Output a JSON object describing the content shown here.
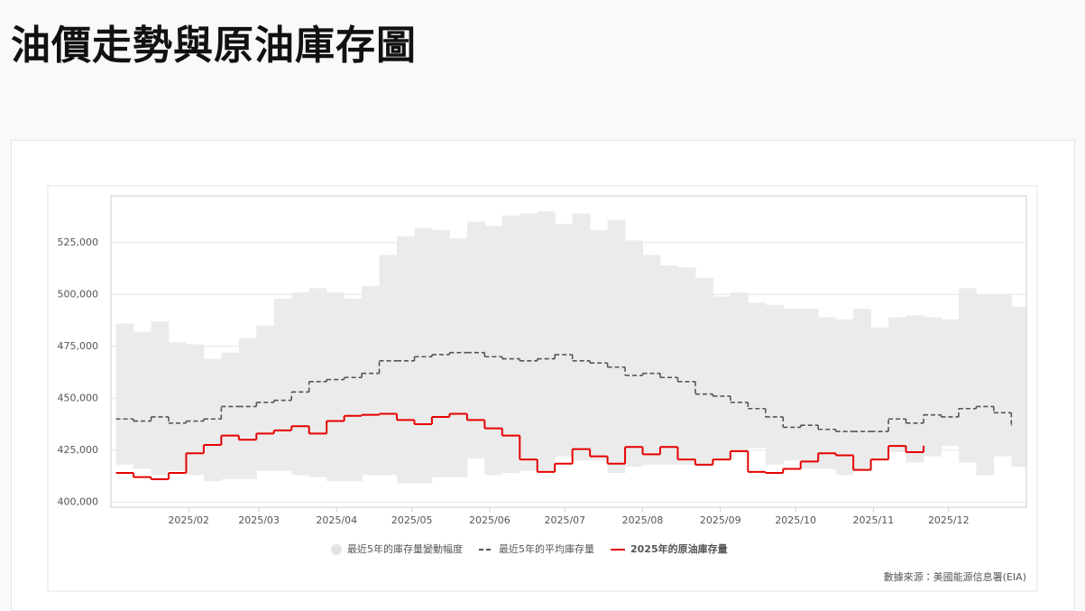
{
  "title": "油價走勢與原油庫存圖",
  "chart_data": {
    "type": "line",
    "step": true,
    "x": [
      3,
      10,
      17,
      24,
      31,
      38,
      45,
      52,
      59,
      66,
      73,
      80,
      87,
      94,
      101,
      108,
      115,
      122,
      129,
      136,
      143,
      150,
      157,
      164,
      171,
      178,
      185,
      192,
      199,
      206,
      213,
      220,
      227,
      234,
      241,
      248,
      255,
      262,
      269,
      276,
      283,
      290,
      297,
      304,
      311,
      318,
      325,
      332,
      339,
      346,
      353,
      360
    ],
    "xlim": [
      1,
      366
    ],
    "xticks": [
      {
        "value": 32,
        "label": "2025/02"
      },
      {
        "value": 60,
        "label": "2025/03"
      },
      {
        "value": 91,
        "label": "2025/04"
      },
      {
        "value": 121,
        "label": "2025/05"
      },
      {
        "value": 152,
        "label": "2025/06"
      },
      {
        "value": 182,
        "label": "2025/07"
      },
      {
        "value": 213,
        "label": "2025/08"
      },
      {
        "value": 244,
        "label": "2025/09"
      },
      {
        "value": 274,
        "label": "2025/10"
      },
      {
        "value": 305,
        "label": "2025/11"
      },
      {
        "value": 335,
        "label": "2025/12"
      }
    ],
    "ylim": [
      397500,
      547500
    ],
    "yticks": [
      {
        "value": 400000,
        "label": "400,000"
      },
      {
        "value": 425000,
        "label": "425,000"
      },
      {
        "value": 450000,
        "label": "450,000"
      },
      {
        "value": 475000,
        "label": "475,000"
      },
      {
        "value": 500000,
        "label": "500,000"
      },
      {
        "value": 525000,
        "label": "525,000"
      }
    ],
    "grid": true,
    "series": [
      {
        "name": "最近5年的庫存量變動幅度",
        "type": "range",
        "color": "#ebebeb",
        "low": [
          418000,
          416000,
          413000,
          415000,
          413000,
          410000,
          411000,
          411000,
          415000,
          415000,
          413000,
          412000,
          410000,
          410000,
          413000,
          413000,
          409000,
          409000,
          412000,
          412000,
          421000,
          413000,
          414000,
          415000,
          415000,
          422000,
          420000,
          420000,
          414000,
          417000,
          418000,
          418000,
          418000,
          417000,
          420000,
          425000,
          426000,
          418000,
          420000,
          416000,
          416000,
          413000,
          415000,
          420000,
          424000,
          419000,
          422000,
          427000,
          419000,
          413000,
          422000,
          417000
        ],
        "high": [
          486000,
          482000,
          487000,
          477000,
          476000,
          469000,
          472000,
          479000,
          485000,
          498000,
          501000,
          503000,
          501000,
          498000,
          504000,
          519000,
          528000,
          532000,
          531000,
          527000,
          535000,
          533000,
          538000,
          539000,
          540000,
          534000,
          539000,
          531000,
          536000,
          526000,
          519000,
          514000,
          513000,
          508000,
          499000,
          501000,
          496000,
          495000,
          493000,
          493000,
          489000,
          488000,
          493000,
          484000,
          489000,
          490000,
          489000,
          488000,
          503000,
          500000,
          500000,
          494000
        ]
      },
      {
        "name": "最近5年的平均庫存量",
        "type": "line",
        "color": "#555555",
        "dash": true,
        "values": [
          440000,
          439000,
          441000,
          438000,
          439000,
          440000,
          446000,
          446000,
          448000,
          449000,
          453000,
          458000,
          459000,
          460000,
          462000,
          468000,
          468000,
          470000,
          471000,
          472000,
          472000,
          470000,
          469000,
          468000,
          469000,
          471000,
          468000,
          467000,
          465000,
          461000,
          462000,
          460000,
          458000,
          452000,
          451000,
          448000,
          445000,
          441000,
          436000,
          437000,
          435000,
          434000,
          434000,
          434000,
          440000,
          438000,
          442000,
          441000,
          445000,
          446000,
          443000,
          437000
        ]
      },
      {
        "name": "2025年的原油庫存量",
        "type": "line",
        "color": "#e60000",
        "dash": false,
        "values": [
          414000,
          412000,
          411000,
          414000,
          423500,
          427500,
          432000,
          430000,
          433000,
          434500,
          436500,
          433000,
          439000,
          441500,
          442000,
          442500,
          439500,
          437500,
          441000,
          442500,
          439500,
          435500,
          432000,
          420500,
          414500,
          418500,
          425500,
          422000,
          418500,
          426500,
          423000,
          426500,
          420500,
          418000,
          420500,
          424500,
          414500,
          414000,
          416000,
          419500,
          423500,
          422500,
          415500,
          420500,
          427000,
          424000,
          427000,
          null,
          null,
          null,
          null,
          null
        ]
      }
    ],
    "source": "數據來源：美國能源信息署(EIA)"
  }
}
